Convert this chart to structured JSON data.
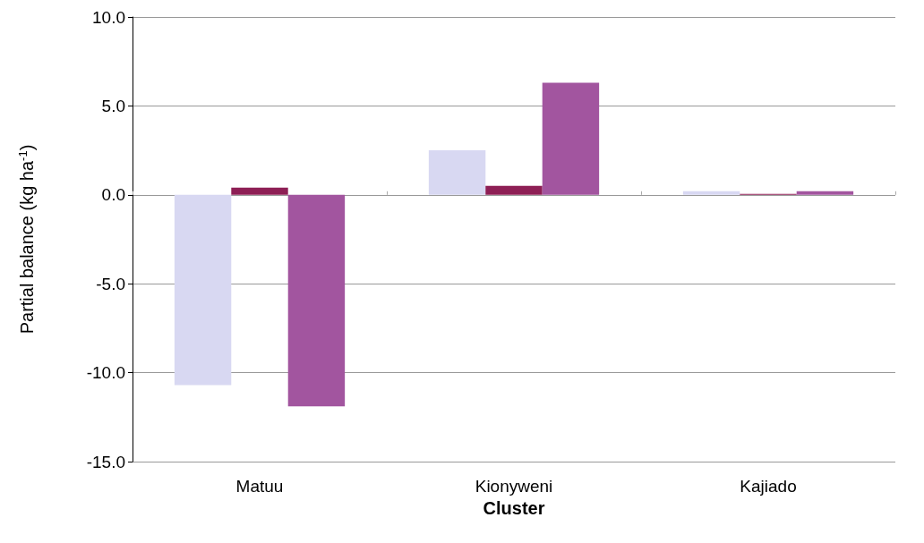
{
  "chart_data": {
    "type": "bar",
    "xlabel": "Cluster",
    "ylabel": "Partial balance (kg ha$^{-1}$)",
    "categories": [
      "Matuu",
      "Kionyweni",
      "Kajiado"
    ],
    "series": [
      {
        "color": "#d8d8f2",
        "values": [
          -10.7,
          2.5,
          0.2
        ]
      },
      {
        "color": "#8e1f55",
        "values": [
          0.4,
          0.5,
          0.05
        ]
      },
      {
        "color": "#a2559f",
        "values": [
          -11.9,
          6.3,
          0.2
        ]
      }
    ],
    "ylim": [
      -15,
      10
    ],
    "yticks": [
      {
        "value": -15,
        "label": "-15.0"
      },
      {
        "value": -10,
        "label": "-10.0"
      },
      {
        "value": -5,
        "label": "-5.0"
      },
      {
        "value": 0,
        "label": "0.0"
      },
      {
        "value": 5,
        "label": "5.0"
      },
      {
        "value": 10,
        "label": "10.0"
      }
    ],
    "grid": "y"
  }
}
